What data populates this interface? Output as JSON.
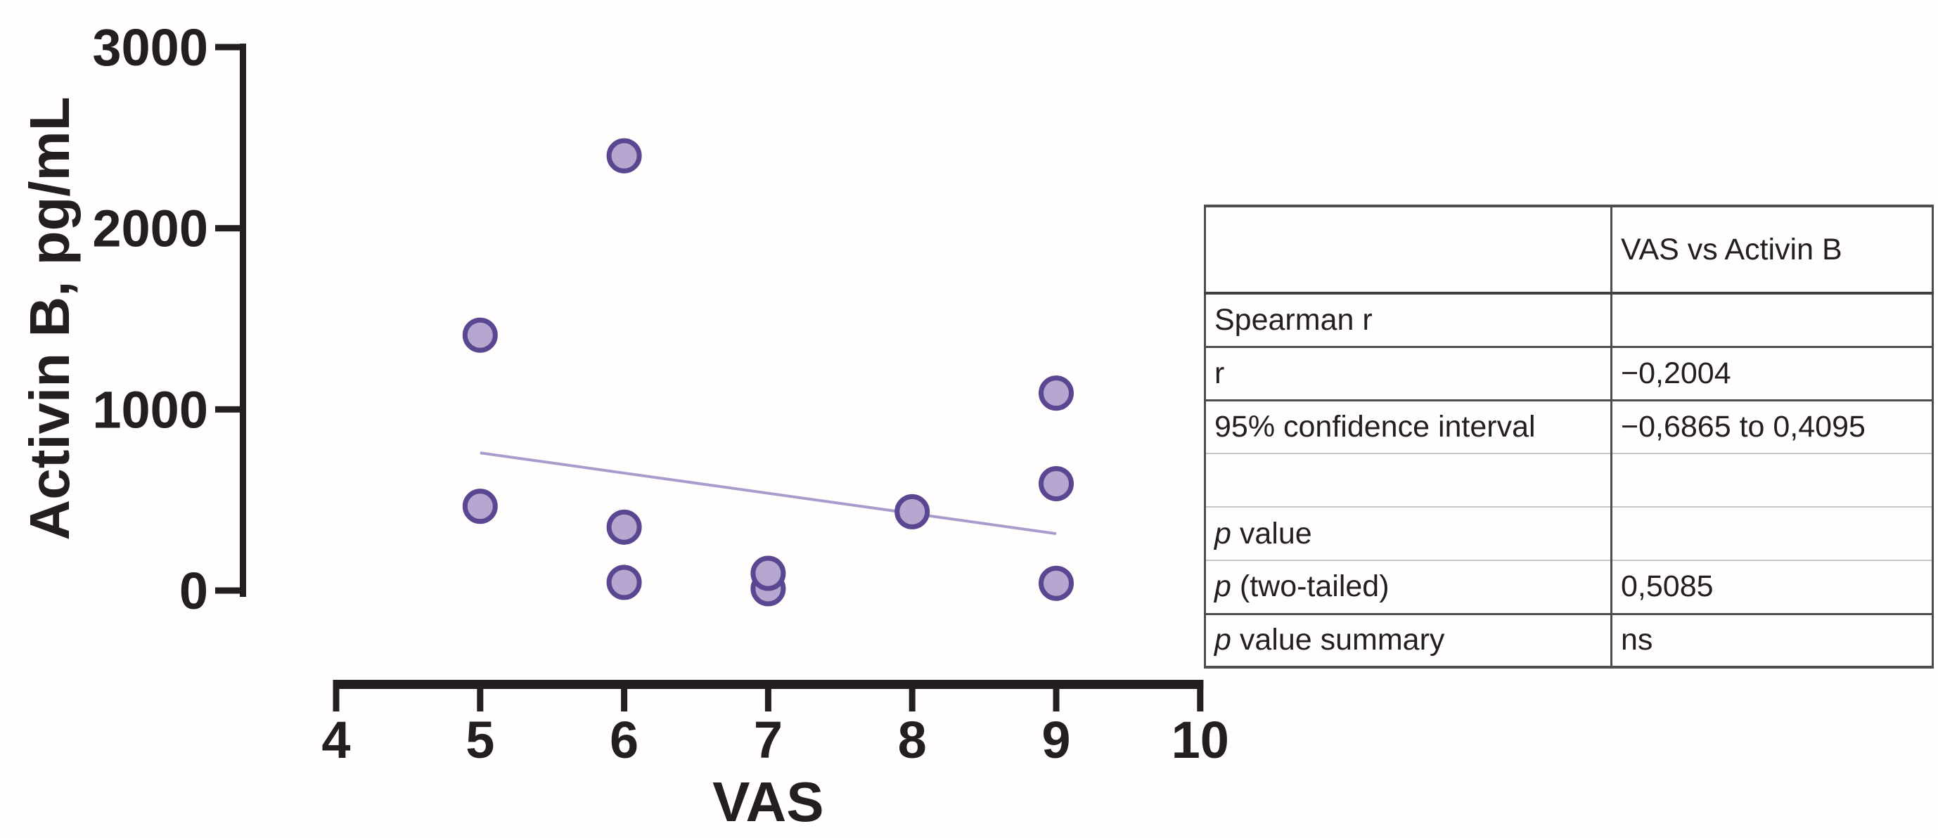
{
  "chart_data": {
    "type": "scatter",
    "title": "",
    "xlabel": "VAS",
    "ylabel": "Activin B, pg/mL",
    "xlim": [
      4,
      10
    ],
    "ylim": [
      0,
      3000
    ],
    "xticks": [
      4,
      5,
      6,
      7,
      8,
      9,
      10
    ],
    "yticks": [
      0,
      1000,
      2000,
      3000
    ],
    "grid": false,
    "legend": false,
    "points": [
      {
        "x": 5,
        "y": 1410
      },
      {
        "x": 5,
        "y": 465
      },
      {
        "x": 6,
        "y": 2400
      },
      {
        "x": 6,
        "y": 350
      },
      {
        "x": 6,
        "y": 45
      },
      {
        "x": 7,
        "y": 10
      },
      {
        "x": 7,
        "y": 95
      },
      {
        "x": 8,
        "y": 435
      },
      {
        "x": 9,
        "y": 1090
      },
      {
        "x": 9,
        "y": 590
      },
      {
        "x": 9,
        "y": 40
      }
    ],
    "trendline": {
      "x1": 5,
      "y1": 760,
      "x2": 9,
      "y2": 314
    },
    "colors": {
      "axis": "#231f20",
      "marker_fill": "#b5a7d0",
      "marker_stroke": "#5b4791",
      "trend_line": "#a89ccd"
    }
  },
  "stats_table": {
    "header_col1": "",
    "header_col2": "VAS vs Activin B",
    "rows": [
      {
        "label": "Spearman r",
        "value": ""
      },
      {
        "label": "r",
        "value": ""
      },
      {
        "label": "95% confidence interval",
        "value": ""
      },
      {
        "label": "",
        "value": ""
      },
      {
        "italic": "p",
        "label": " value",
        "value": ""
      },
      {
        "italic": "p",
        "label": " (two-tailed)",
        "value": ""
      },
      {
        "italic": "p",
        "label": " value summary",
        "value": ""
      }
    ],
    "values": {
      "r": "−0,2004",
      "ci": "−0,6865 to 0,4095",
      "p_two_tailed": "0,5085",
      "p_summary": "ns"
    }
  }
}
